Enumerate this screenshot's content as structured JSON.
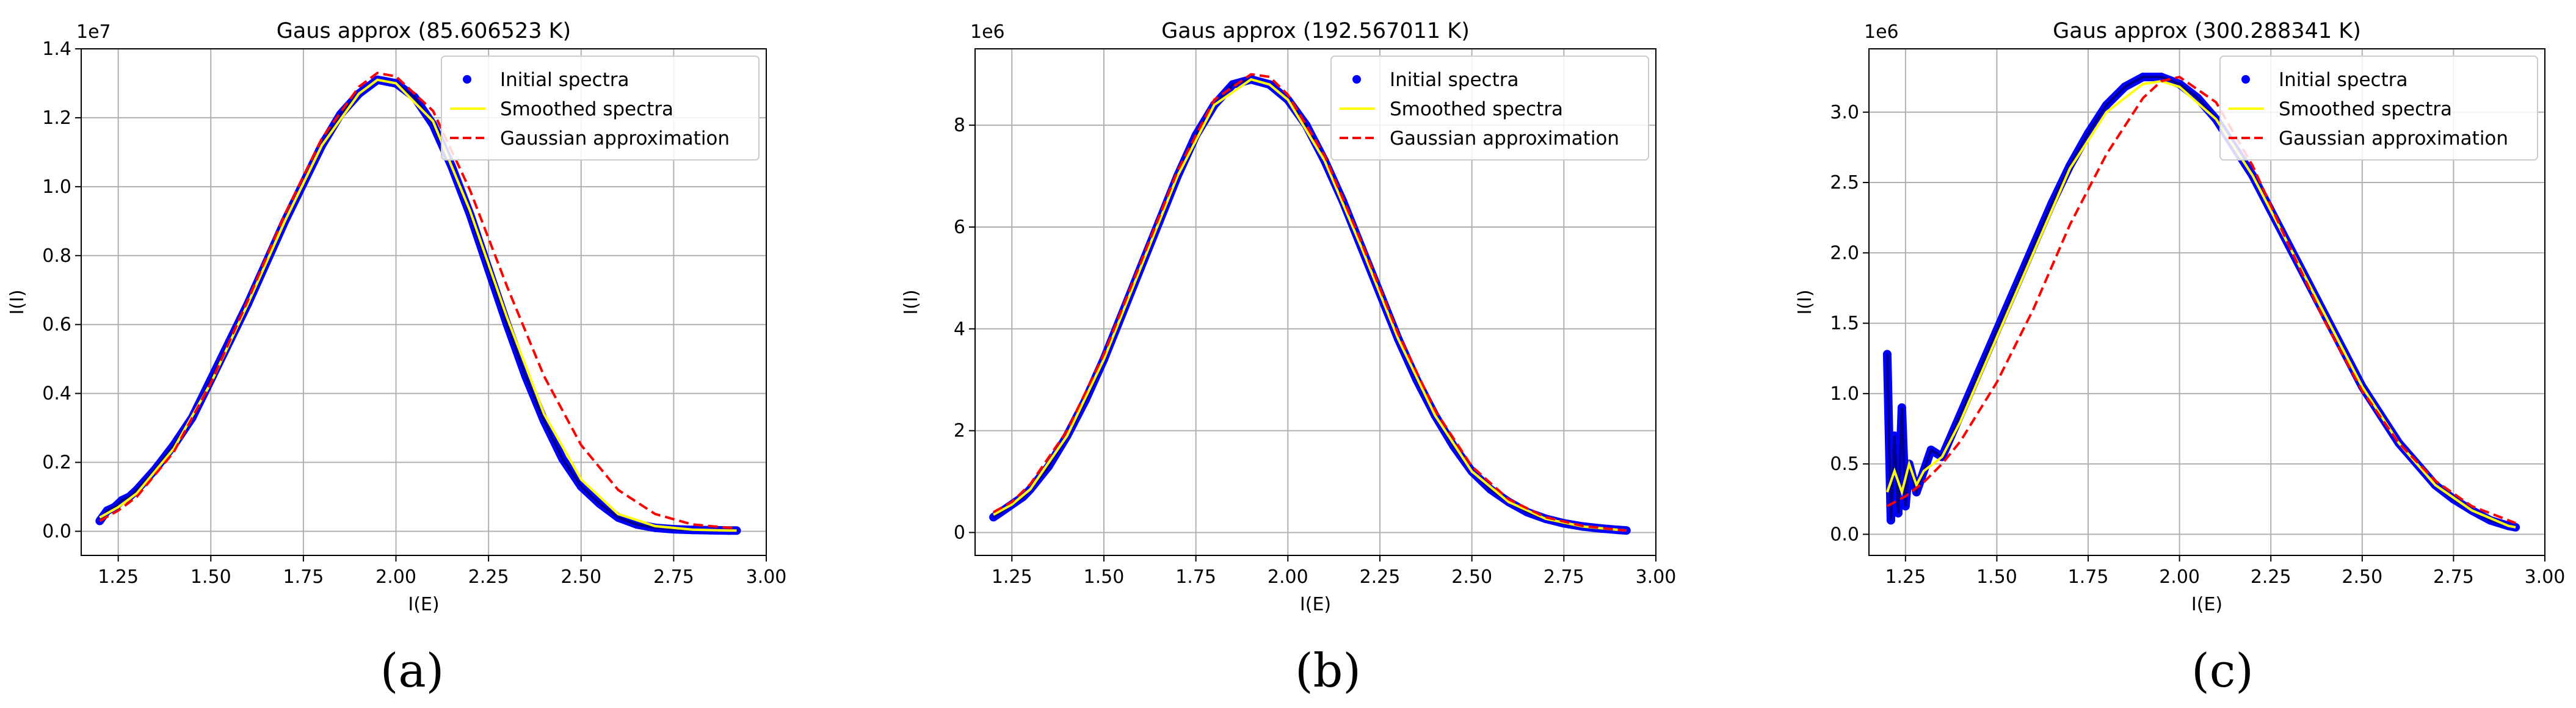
{
  "colors": {
    "initial": "#0000ff",
    "smoothed": "#ffff00",
    "gaussian": "#ff0000",
    "fit_line": "#00008b",
    "grid": "#b0b0b0"
  },
  "legend": {
    "initial": "Initial spectra",
    "smoothed": "Smoothed spectra",
    "gaussian": "Gaussian approximation"
  },
  "chart_data": [
    {
      "type": "line",
      "title": "Gaus approx (85.606523 K)",
      "caption": "(a)",
      "xlabel": "I(E)",
      "ylabel": "I(I)",
      "offset_label": "1e7",
      "xlim": [
        1.15,
        3.0
      ],
      "ylim": [
        -0.07,
        1.4
      ],
      "x_ticks": [
        1.25,
        1.5,
        1.75,
        2.0,
        2.25,
        2.5,
        2.75,
        3.0
      ],
      "x_tick_labels": [
        "1.25",
        "1.50",
        "1.75",
        "2.00",
        "2.25",
        "2.50",
        "2.75",
        "3.00"
      ],
      "y_ticks": [
        0.0,
        0.2,
        0.4,
        0.6,
        0.8,
        1.0,
        1.2,
        1.4
      ],
      "y_tick_labels": [
        "0.0",
        "0.2",
        "0.4",
        "0.6",
        "0.8",
        "1.0",
        "1.2",
        "1.4"
      ],
      "grid": true,
      "legend_position": "top-right",
      "series": [
        {
          "name": "Initial spectra",
          "style": "scatter",
          "x": [
            1.2,
            1.22,
            1.24,
            1.26,
            1.28,
            1.3,
            1.35,
            1.4,
            1.45,
            1.5,
            1.55,
            1.6,
            1.65,
            1.7,
            1.75,
            1.8,
            1.85,
            1.9,
            1.95,
            2.0,
            2.05,
            2.1,
            2.15,
            2.2,
            2.25,
            2.3,
            2.35,
            2.4,
            2.45,
            2.5,
            2.55,
            2.6,
            2.65,
            2.7,
            2.75,
            2.8,
            2.85,
            2.9,
            2.92
          ],
          "y": [
            0.03,
            0.06,
            0.07,
            0.09,
            0.1,
            0.12,
            0.18,
            0.25,
            0.33,
            0.44,
            0.55,
            0.66,
            0.78,
            0.9,
            1.01,
            1.12,
            1.21,
            1.27,
            1.31,
            1.3,
            1.26,
            1.18,
            1.06,
            0.92,
            0.76,
            0.6,
            0.45,
            0.32,
            0.21,
            0.13,
            0.08,
            0.04,
            0.02,
            0.01,
            0.006,
            0.004,
            0.003,
            0.002,
            0.002
          ]
        },
        {
          "name": "Smoothed spectra",
          "style": "line",
          "x": [
            1.2,
            1.25,
            1.3,
            1.4,
            1.5,
            1.6,
            1.7,
            1.8,
            1.9,
            1.95,
            2.0,
            2.1,
            2.2,
            2.3,
            2.4,
            2.5,
            2.6,
            2.7,
            2.8,
            2.9,
            2.92
          ],
          "y": [
            0.04,
            0.07,
            0.11,
            0.24,
            0.43,
            0.66,
            0.9,
            1.12,
            1.27,
            1.31,
            1.3,
            1.19,
            0.93,
            0.62,
            0.34,
            0.15,
            0.05,
            0.015,
            0.005,
            0.002,
            0.002
          ]
        },
        {
          "name": "Gaussian approximation",
          "style": "dashed",
          "x": [
            1.2,
            1.25,
            1.3,
            1.4,
            1.5,
            1.6,
            1.7,
            1.8,
            1.9,
            1.95,
            2.0,
            2.1,
            2.2,
            2.3,
            2.4,
            2.5,
            2.6,
            2.7,
            2.8,
            2.9,
            2.92
          ],
          "y": [
            0.03,
            0.06,
            0.1,
            0.23,
            0.43,
            0.67,
            0.92,
            1.14,
            1.29,
            1.33,
            1.32,
            1.22,
            0.99,
            0.71,
            0.45,
            0.25,
            0.12,
            0.05,
            0.02,
            0.01,
            0.01
          ]
        }
      ]
    },
    {
      "type": "line",
      "title": "Gaus approx (192.567011 K)",
      "caption": "(b)",
      "xlabel": "I(E)",
      "ylabel": "I(I)",
      "offset_label": "1e6",
      "xlim": [
        1.15,
        3.0
      ],
      "ylim": [
        -0.45,
        9.5
      ],
      "x_ticks": [
        1.25,
        1.5,
        1.75,
        2.0,
        2.25,
        2.5,
        2.75,
        3.0
      ],
      "x_tick_labels": [
        "1.25",
        "1.50",
        "1.75",
        "2.00",
        "2.25",
        "2.50",
        "2.75",
        "3.00"
      ],
      "y_ticks": [
        0,
        2,
        4,
        6,
        8
      ],
      "y_tick_labels": [
        "0",
        "2",
        "4",
        "6",
        "8"
      ],
      "grid": true,
      "legend_position": "top-right",
      "series": [
        {
          "name": "Initial spectra",
          "style": "scatter",
          "x": [
            1.2,
            1.22,
            1.24,
            1.26,
            1.28,
            1.3,
            1.35,
            1.4,
            1.45,
            1.5,
            1.55,
            1.6,
            1.65,
            1.7,
            1.75,
            1.8,
            1.85,
            1.9,
            1.95,
            2.0,
            2.05,
            2.1,
            2.15,
            2.2,
            2.25,
            2.3,
            2.35,
            2.4,
            2.45,
            2.5,
            2.55,
            2.6,
            2.65,
            2.7,
            2.75,
            2.8,
            2.85,
            2.9,
            2.92
          ],
          "y": [
            0.3,
            0.4,
            0.5,
            0.6,
            0.7,
            0.85,
            1.3,
            1.9,
            2.6,
            3.4,
            4.3,
            5.2,
            6.1,
            7.0,
            7.8,
            8.4,
            8.8,
            8.9,
            8.8,
            8.5,
            8.0,
            7.3,
            6.5,
            5.6,
            4.7,
            3.8,
            3.0,
            2.3,
            1.7,
            1.2,
            0.85,
            0.6,
            0.4,
            0.27,
            0.18,
            0.12,
            0.08,
            0.05,
            0.04
          ]
        },
        {
          "name": "Smoothed spectra",
          "style": "line",
          "x": [
            1.2,
            1.25,
            1.3,
            1.4,
            1.5,
            1.6,
            1.7,
            1.8,
            1.9,
            1.95,
            2.0,
            2.1,
            2.2,
            2.3,
            2.4,
            2.5,
            2.6,
            2.7,
            2.8,
            2.9,
            2.92
          ],
          "y": [
            0.35,
            0.55,
            0.85,
            1.9,
            3.4,
            5.2,
            7.0,
            8.4,
            8.9,
            8.8,
            8.5,
            7.3,
            5.6,
            3.8,
            2.3,
            1.2,
            0.6,
            0.27,
            0.12,
            0.05,
            0.04
          ]
        },
        {
          "name": "Gaussian approximation",
          "style": "dashed",
          "x": [
            1.2,
            1.25,
            1.3,
            1.4,
            1.5,
            1.6,
            1.7,
            1.8,
            1.9,
            1.95,
            2.0,
            2.1,
            2.2,
            2.3,
            2.4,
            2.5,
            2.6,
            2.7,
            2.8,
            2.9,
            2.92
          ],
          "y": [
            0.4,
            0.6,
            0.95,
            2.0,
            3.5,
            5.3,
            7.1,
            8.5,
            9.0,
            8.95,
            8.6,
            7.4,
            5.7,
            3.9,
            2.4,
            1.3,
            0.65,
            0.3,
            0.13,
            0.05,
            0.04
          ]
        }
      ]
    },
    {
      "type": "line",
      "title": "Gaus approx (300.288341 K)",
      "caption": "(c)",
      "xlabel": "I(E)",
      "ylabel": "I(I)",
      "offset_label": "1e6",
      "xlim": [
        1.15,
        3.0
      ],
      "ylim": [
        -0.15,
        3.45
      ],
      "x_ticks": [
        1.25,
        1.5,
        1.75,
        2.0,
        2.25,
        2.5,
        2.75,
        3.0
      ],
      "x_tick_labels": [
        "1.25",
        "1.50",
        "1.75",
        "2.00",
        "2.25",
        "2.50",
        "2.75",
        "3.00"
      ],
      "y_ticks": [
        0.0,
        0.5,
        1.0,
        1.5,
        2.0,
        2.5,
        3.0
      ],
      "y_tick_labels": [
        "0.0",
        "0.5",
        "1.0",
        "1.5",
        "2.0",
        "2.5",
        "3.0"
      ],
      "grid": true,
      "legend_position": "top-right",
      "series": [
        {
          "name": "Initial spectra",
          "style": "scatter",
          "x": [
            1.2,
            1.21,
            1.22,
            1.23,
            1.24,
            1.25,
            1.26,
            1.28,
            1.3,
            1.32,
            1.35,
            1.4,
            1.45,
            1.5,
            1.55,
            1.6,
            1.65,
            1.7,
            1.75,
            1.8,
            1.85,
            1.9,
            1.95,
            2.0,
            2.05,
            2.1,
            2.15,
            2.2,
            2.25,
            2.3,
            2.35,
            2.4,
            2.45,
            2.5,
            2.55,
            2.6,
            2.65,
            2.7,
            2.75,
            2.8,
            2.85,
            2.9,
            2.92
          ],
          "y": [
            1.28,
            0.1,
            0.7,
            0.15,
            0.9,
            0.2,
            0.5,
            0.3,
            0.45,
            0.6,
            0.55,
            0.85,
            1.15,
            1.45,
            1.75,
            2.05,
            2.35,
            2.62,
            2.85,
            3.05,
            3.18,
            3.25,
            3.25,
            3.2,
            3.1,
            2.95,
            2.75,
            2.55,
            2.3,
            2.05,
            1.8,
            1.55,
            1.3,
            1.05,
            0.85,
            0.65,
            0.5,
            0.35,
            0.25,
            0.17,
            0.1,
            0.06,
            0.05
          ]
        },
        {
          "name": "Smoothed spectra",
          "style": "line",
          "x": [
            1.2,
            1.22,
            1.24,
            1.26,
            1.28,
            1.3,
            1.35,
            1.4,
            1.5,
            1.6,
            1.7,
            1.8,
            1.9,
            1.95,
            2.0,
            2.1,
            2.2,
            2.3,
            2.4,
            2.5,
            2.6,
            2.7,
            2.8,
            2.9,
            2.92
          ],
          "y": [
            0.3,
            0.45,
            0.3,
            0.5,
            0.35,
            0.45,
            0.55,
            0.8,
            1.4,
            2.0,
            2.6,
            3.0,
            3.2,
            3.22,
            3.18,
            2.95,
            2.55,
            2.05,
            1.55,
            1.05,
            0.65,
            0.35,
            0.17,
            0.06,
            0.05
          ]
        },
        {
          "name": "Gaussian approximation",
          "style": "dashed",
          "x": [
            1.2,
            1.25,
            1.3,
            1.35,
            1.4,
            1.5,
            1.6,
            1.7,
            1.8,
            1.9,
            1.95,
            2.0,
            2.1,
            2.2,
            2.3,
            2.4,
            2.5,
            2.6,
            2.7,
            2.8,
            2.9,
            2.92
          ],
          "y": [
            0.2,
            0.27,
            0.37,
            0.5,
            0.66,
            1.08,
            1.6,
            2.2,
            2.7,
            3.1,
            3.22,
            3.25,
            3.07,
            2.62,
            2.05,
            1.5,
            1.02,
            0.65,
            0.38,
            0.2,
            0.1,
            0.08
          ]
        }
      ]
    }
  ]
}
